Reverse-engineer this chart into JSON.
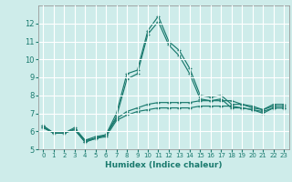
{
  "xlabel": "Humidex (Indice chaleur)",
  "background_color": "#ceecea",
  "line_color": "#1a7a6e",
  "grid_color": "#ffffff",
  "xlim": [
    -0.5,
    23.5
  ],
  "ylim": [
    5,
    13
  ],
  "yticks": [
    5,
    6,
    7,
    8,
    9,
    10,
    11,
    12
  ],
  "xtick_labels": [
    "0",
    "1",
    "2",
    "3",
    "4",
    "5",
    "6",
    "7",
    "8",
    "9",
    "10",
    "11",
    "12",
    "13",
    "14",
    "15",
    "16",
    "17",
    "18",
    "19",
    "20",
    "21",
    "22",
    "23"
  ],
  "series": [
    [
      6.3,
      5.9,
      5.9,
      6.2,
      5.5,
      5.7,
      5.8,
      7.0,
      9.2,
      9.4,
      11.6,
      12.4,
      11.0,
      10.5,
      9.5,
      8.0,
      7.9,
      8.0,
      7.5,
      7.5,
      7.4,
      7.2,
      7.5,
      7.5
    ],
    [
      6.3,
      5.9,
      5.9,
      6.1,
      5.5,
      5.6,
      5.8,
      6.8,
      8.9,
      9.2,
      11.4,
      12.1,
      10.8,
      10.2,
      9.2,
      7.8,
      7.7,
      7.8,
      7.3,
      7.3,
      7.2,
      7.0,
      7.3,
      7.3
    ],
    [
      6.2,
      5.9,
      5.9,
      6.1,
      5.4,
      5.6,
      5.8,
      6.7,
      7.1,
      7.3,
      7.5,
      7.6,
      7.6,
      7.6,
      7.6,
      7.7,
      7.7,
      7.7,
      7.7,
      7.5,
      7.3,
      7.2,
      7.4,
      7.4
    ],
    [
      6.2,
      5.9,
      5.9,
      6.1,
      5.4,
      5.6,
      5.7,
      6.6,
      6.9,
      7.1,
      7.2,
      7.3,
      7.3,
      7.3,
      7.3,
      7.4,
      7.4,
      7.4,
      7.4,
      7.3,
      7.2,
      7.1,
      7.3,
      7.3
    ]
  ]
}
